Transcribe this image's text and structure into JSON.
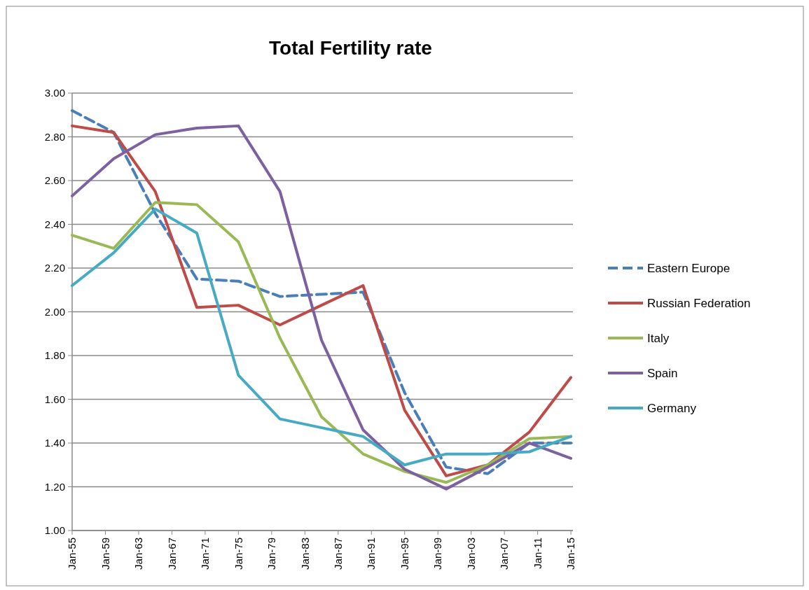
{
  "chart_data": {
    "type": "line",
    "title": "Total Fertility rate",
    "x": [
      "1955-01",
      "1960-01",
      "1965-01",
      "1970-01",
      "1975-01",
      "1980-01",
      "1985-01",
      "1990-01",
      "1995-01",
      "2000-01",
      "2005-01",
      "2010-01",
      "2015-01"
    ],
    "series": [
      {
        "name": "Eastern Europe",
        "color": "#4a7ebb",
        "line_style": "dashed",
        "values": [
          2.92,
          2.82,
          2.45,
          2.15,
          2.14,
          2.07,
          2.08,
          2.09,
          1.63,
          1.29,
          1.26,
          1.4,
          1.4
        ]
      },
      {
        "name": "Russian Federation",
        "color": "#be4b48",
        "values": [
          2.85,
          2.82,
          2.55,
          2.02,
          2.03,
          1.94,
          2.03,
          2.12,
          1.55,
          1.25,
          1.3,
          1.45,
          1.7
        ]
      },
      {
        "name": "Italy",
        "color": "#98b954",
        "values": [
          2.35,
          2.29,
          2.5,
          2.49,
          2.32,
          1.88,
          1.52,
          1.35,
          1.27,
          1.22,
          1.3,
          1.42,
          1.43
        ]
      },
      {
        "name": "Spain",
        "color": "#7d60a0",
        "values": [
          2.53,
          2.7,
          2.81,
          2.84,
          2.85,
          2.55,
          1.87,
          1.46,
          1.28,
          1.19,
          1.29,
          1.4,
          1.33
        ]
      },
      {
        "name": "Germany",
        "color": "#46aac5",
        "values": [
          2.12,
          2.27,
          2.47,
          2.36,
          1.71,
          1.51,
          1.47,
          1.43,
          1.3,
          1.35,
          1.35,
          1.36,
          1.43
        ]
      }
    ],
    "xlim": [
      "1955-01",
      "2015-04"
    ],
    "xticks": [
      {
        "value": "1955-01",
        "label": "Jan-55"
      },
      {
        "value": "1959-01",
        "label": "Jan-59"
      },
      {
        "value": "1963-01",
        "label": "Jan-63"
      },
      {
        "value": "1967-01",
        "label": "Jan-67"
      },
      {
        "value": "1971-01",
        "label": "Jan-71"
      },
      {
        "value": "1975-01",
        "label": "Jan-75"
      },
      {
        "value": "1979-01",
        "label": "Jan-79"
      },
      {
        "value": "1983-01",
        "label": "Jan-83"
      },
      {
        "value": "1987-01",
        "label": "Jan-87"
      },
      {
        "value": "1991-01",
        "label": "Jan-91"
      },
      {
        "value": "1995-01",
        "label": "Jan-95"
      },
      {
        "value": "1999-01",
        "label": "Jan-99"
      },
      {
        "value": "2003-01",
        "label": "Jan-03"
      },
      {
        "value": "2007-01",
        "label": "Jan-07"
      },
      {
        "value": "2011-01",
        "label": "Jan-11"
      },
      {
        "value": "2015-01",
        "label": "Jan-15"
      }
    ],
    "ylim": [
      1.0,
      3.0
    ],
    "yticks": [
      {
        "value": 1.0,
        "label": "1.00"
      },
      {
        "value": 1.2,
        "label": "1.20"
      },
      {
        "value": 1.4,
        "label": "1.40"
      },
      {
        "value": 1.6,
        "label": "1.60"
      },
      {
        "value": 1.8,
        "label": "1.80"
      },
      {
        "value": 2.0,
        "label": "2.00"
      },
      {
        "value": 2.2,
        "label": "2.20"
      },
      {
        "value": 2.4,
        "label": "2.40"
      },
      {
        "value": 2.6,
        "label": "2.60"
      },
      {
        "value": 2.8,
        "label": "2.80"
      },
      {
        "value": 3.0,
        "label": "3.00"
      }
    ],
    "grid": "y",
    "legend": "right",
    "marker": "none",
    "line_style": "solid"
  }
}
